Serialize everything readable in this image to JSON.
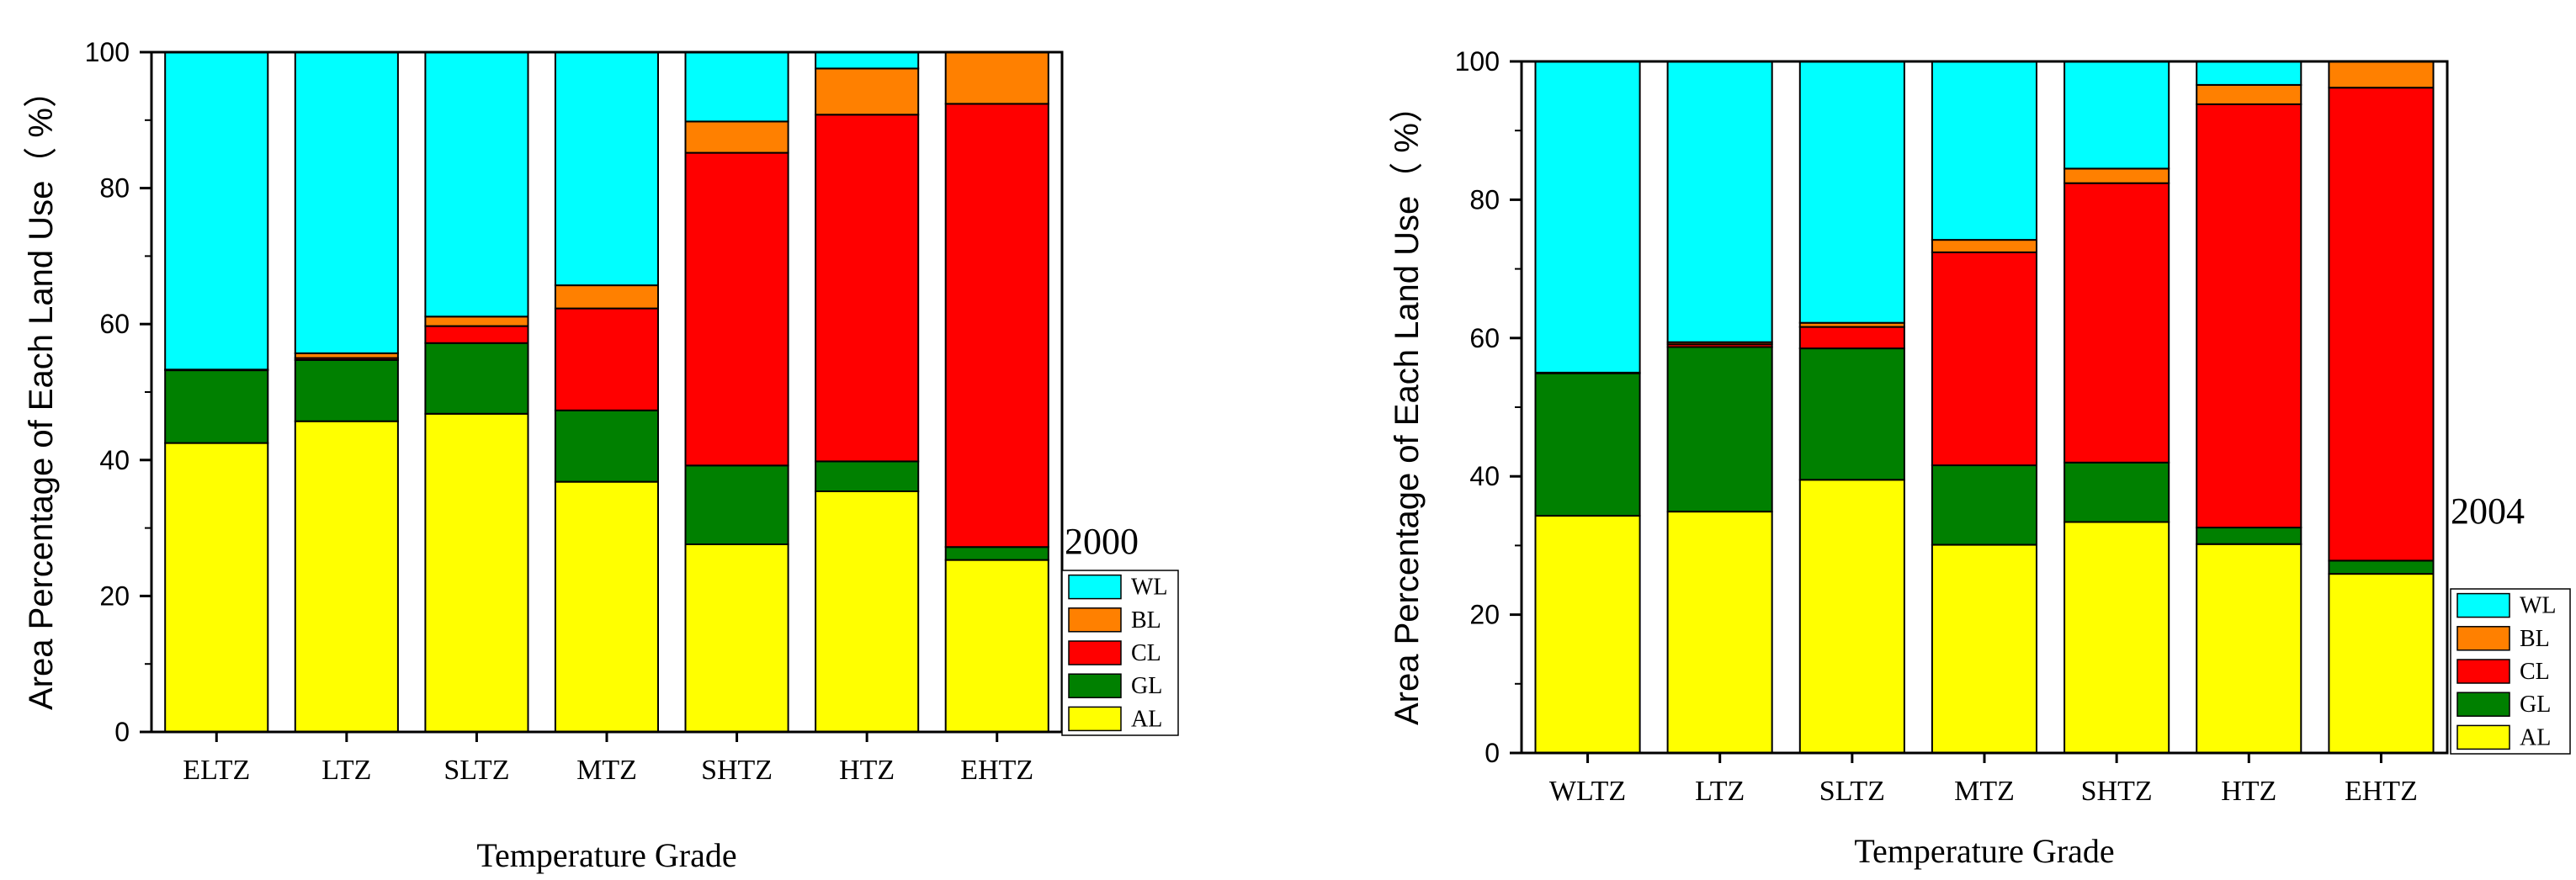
{
  "chart_data": [
    {
      "type": "bar",
      "stacked": true,
      "title": "2000",
      "xlabel": "Temperature Grade",
      "ylabel": "Area Percentage of Each Land Use（ %）",
      "ylim": [
        0,
        100
      ],
      "yticks": [
        "0",
        "20",
        "40",
        "60",
        "80",
        "100"
      ],
      "categories": [
        "ELTZ",
        "LTZ",
        "SLTZ",
        "MTZ",
        "SHTZ",
        "HTZ",
        "EHTZ"
      ],
      "series": [
        {
          "name": "AL",
          "color": "#ffff00",
          "values": [
            42.5,
            45.7,
            46.8,
            36.8,
            27.6,
            35.4,
            25.3
          ]
        },
        {
          "name": "GL",
          "color": "#008000",
          "values": [
            10.7,
            9.0,
            10.4,
            10.5,
            11.6,
            4.4,
            1.9
          ]
        },
        {
          "name": "CL",
          "color": "#ff0000",
          "values": [
            0.0,
            0.3,
            2.5,
            15.0,
            46.0,
            51.0,
            65.2
          ]
        },
        {
          "name": "BL",
          "color": "#ff8000",
          "values": [
            0.1,
            0.7,
            1.4,
            3.4,
            4.6,
            6.8,
            7.6
          ]
        },
        {
          "name": "WL",
          "color": "#00ffff",
          "values": [
            46.7,
            44.3,
            38.9,
            34.3,
            10.2,
            2.4,
            0.0
          ]
        }
      ],
      "legend": [
        "WL",
        "BL",
        "CL",
        "GL",
        "AL"
      ]
    },
    {
      "type": "bar",
      "stacked": true,
      "title": "2004",
      "xlabel": "Temperature Grade",
      "ylabel": "Area Percentage of Each Land Use（ %）",
      "ylim": [
        0,
        100
      ],
      "yticks": [
        "0",
        "20",
        "40",
        "60",
        "80",
        "100"
      ],
      "categories": [
        "WLTZ",
        "LTZ",
        "SLTZ",
        "MTZ",
        "SHTZ",
        "HTZ",
        "EHTZ"
      ],
      "series": [
        {
          "name": "AL",
          "color": "#ffff00",
          "values": [
            34.3,
            34.9,
            39.5,
            30.1,
            33.4,
            30.2,
            25.9
          ]
        },
        {
          "name": "GL",
          "color": "#008000",
          "values": [
            20.6,
            23.8,
            19.0,
            11.5,
            8.6,
            2.4,
            1.9
          ]
        },
        {
          "name": "CL",
          "color": "#ff0000",
          "values": [
            0.0,
            0.4,
            3.1,
            30.8,
            40.4,
            61.2,
            68.4
          ]
        },
        {
          "name": "BL",
          "color": "#ff8000",
          "values": [
            0.1,
            0.3,
            0.6,
            1.8,
            2.1,
            2.8,
            3.8
          ]
        },
        {
          "name": "WL",
          "color": "#00ffff",
          "values": [
            45.0,
            40.6,
            37.8,
            25.8,
            15.5,
            3.4,
            0.0
          ]
        }
      ],
      "legend": [
        "WL",
        "BL",
        "CL",
        "GL",
        "AL"
      ]
    }
  ]
}
